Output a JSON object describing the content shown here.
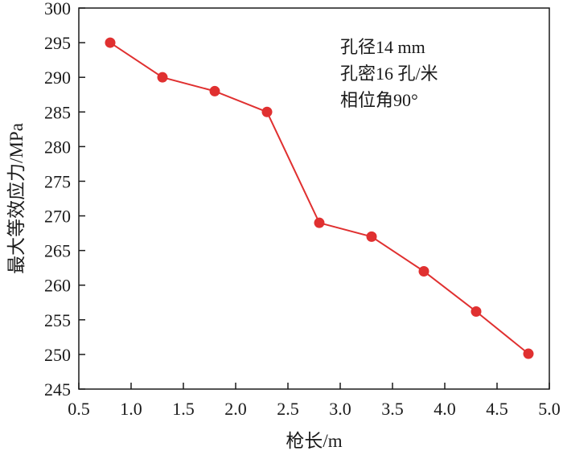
{
  "chart_data": {
    "type": "line",
    "xlabel": "枪长/m",
    "ylabel": "最大等效应力/MPa",
    "xlim": [
      0.5,
      5.0
    ],
    "ylim": [
      245,
      300
    ],
    "xticks": [
      0.5,
      1.0,
      1.5,
      2.0,
      2.5,
      3.0,
      3.5,
      4.0,
      4.5,
      5.0
    ],
    "xtick_labels": [
      "0.5",
      "1.0",
      "1.5",
      "2.0",
      "2.5",
      "3.0",
      "3.5",
      "4.0",
      "4.5",
      "5.0"
    ],
    "yticks": [
      245,
      250,
      255,
      260,
      265,
      270,
      275,
      280,
      285,
      290,
      295,
      300
    ],
    "ytick_labels": [
      "245",
      "250",
      "255",
      "260",
      "265",
      "270",
      "275",
      "280",
      "285",
      "290",
      "295",
      "300"
    ],
    "grid": false,
    "series": [
      {
        "x": [
          0.8,
          1.3,
          1.8,
          2.3,
          2.8,
          3.3,
          3.8,
          4.3,
          4.8
        ],
        "values": [
          295,
          290,
          288,
          285,
          269,
          267,
          262,
          256.2,
          250.1
        ],
        "color": "#e03030"
      }
    ],
    "annotations": [
      "孔径14 mm",
      "孔密16 孔/米",
      "相位角90°"
    ]
  }
}
